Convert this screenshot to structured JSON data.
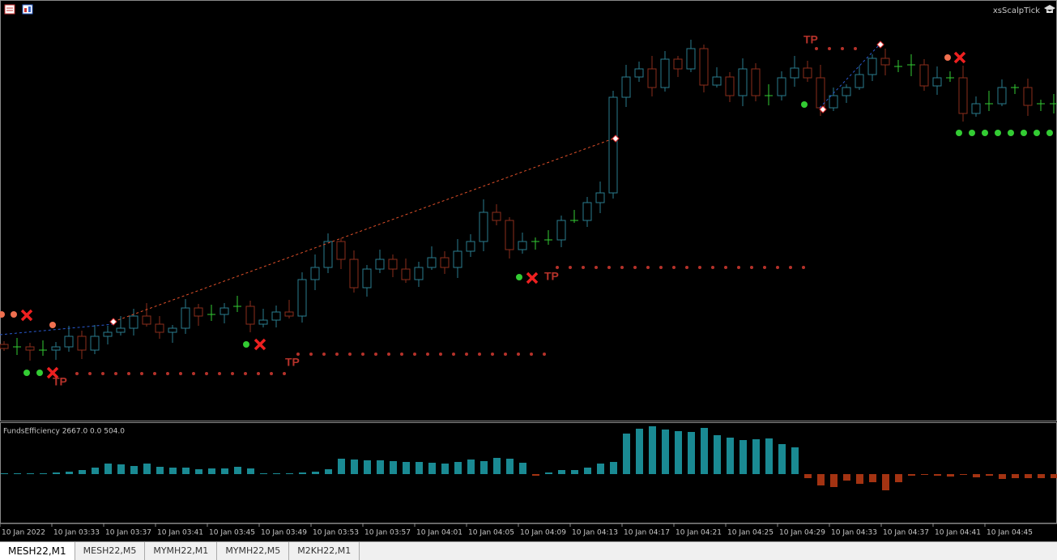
{
  "header": {
    "expert_name": "xsScalpTick"
  },
  "indicator": {
    "label": "FundsEfficiency 2667.0 0.0 504.0"
  },
  "annotations": [
    "TP",
    "TP",
    "TP",
    "TP"
  ],
  "time_axis": [
    "10 Jan 2022",
    "10 Jan 03:33",
    "10 Jan 03:37",
    "10 Jan 03:41",
    "10 Jan 03:45",
    "10 Jan 03:49",
    "10 Jan 03:53",
    "10 Jan 03:57",
    "10 Jan 04:01",
    "10 Jan 04:05",
    "10 Jan 04:09",
    "10 Jan 04:13",
    "10 Jan 04:17",
    "10 Jan 04:21",
    "10 Jan 04:25",
    "10 Jan 04:29",
    "10 Jan 04:33",
    "10 Jan 04:37",
    "10 Jan 04:41",
    "10 Jan 04:45"
  ],
  "tabs": [
    "MESH22,M1",
    "MESH22,M5",
    "MYMH22,M1",
    "MYMH22,M5",
    "M2KH22,M1"
  ]
}
